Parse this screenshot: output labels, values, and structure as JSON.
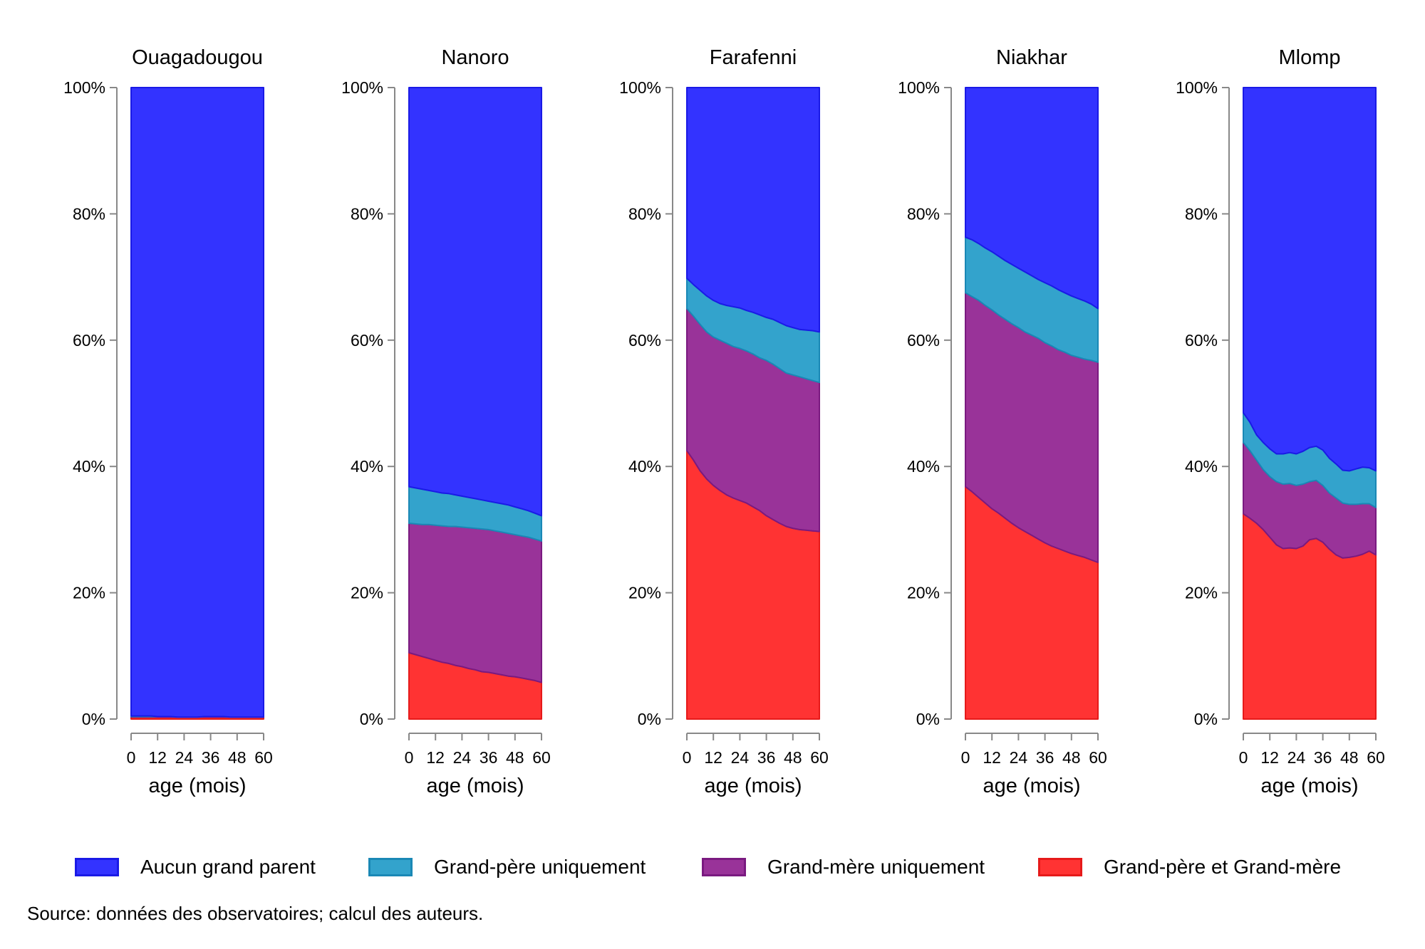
{
  "chart_data": {
    "type": "area",
    "stacked": true,
    "normalized": true,
    "xlabel": "age (mois)",
    "xticks": [
      0,
      12,
      24,
      36,
      48,
      60
    ],
    "xlim": [
      0,
      60
    ],
    "ylim": [
      0,
      100
    ],
    "yticks": [
      "0%",
      "20%",
      "40%",
      "60%",
      "80%",
      "100%"
    ],
    "ytick_values": [
      0,
      20,
      40,
      60,
      80,
      100
    ],
    "series_meta": [
      {
        "name": "Aucun grand parent",
        "fill": "#3333ff",
        "stroke": "#1a1ae6"
      },
      {
        "name": "Grand-père uniquement",
        "fill": "#33a3cc",
        "stroke": "#1a88b5"
      },
      {
        "name": "Grand-mère uniquement",
        "fill": "#993399",
        "stroke": "#7a1a80"
      },
      {
        "name": "Grand-père et Grand-mère",
        "fill": "#ff3333",
        "stroke": "#e61a1a"
      }
    ],
    "x": [
      0,
      3,
      6,
      9,
      12,
      15,
      18,
      21,
      24,
      27,
      30,
      33,
      36,
      39,
      42,
      45,
      48,
      51,
      54,
      57,
      60
    ],
    "panels": [
      {
        "title": "Ouagadougou",
        "boundaries": {
          "red_top": [
            0.3,
            0.3,
            0.3,
            0.3,
            0.3,
            0.3,
            0.3,
            0.3,
            0.3,
            0.3,
            0.3,
            0.3,
            0.3,
            0.3,
            0.3,
            0.3,
            0.3,
            0.3,
            0.3,
            0.3,
            0.3
          ],
          "purple_top": [
            0.4,
            0.4,
            0.4,
            0.4,
            0.4,
            0.4,
            0.4,
            0.4,
            0.4,
            0.4,
            0.4,
            0.4,
            0.4,
            0.4,
            0.4,
            0.4,
            0.4,
            0.4,
            0.4,
            0.4,
            0.4
          ],
          "teal_top": [
            0.5,
            0.5,
            0.5,
            0.5,
            0.4,
            0.4,
            0.4,
            0.3,
            0.3,
            0.3,
            0.3,
            0.4,
            0.4,
            0.4,
            0.4,
            0.3,
            0.3,
            0.3,
            0.3,
            0.3,
            0.3
          ]
        }
      },
      {
        "title": "Nanoro",
        "boundaries": {
          "red_top": [
            10.5,
            10.2,
            9.9,
            9.6,
            9.3,
            9.0,
            8.8,
            8.5,
            8.3,
            8.0,
            7.8,
            7.5,
            7.4,
            7.2,
            7.0,
            6.8,
            6.7,
            6.5,
            6.3,
            6.1,
            5.8
          ],
          "purple_top": [
            31.0,
            30.9,
            30.8,
            30.8,
            30.7,
            30.6,
            30.5,
            30.5,
            30.4,
            30.3,
            30.2,
            30.1,
            30.0,
            29.8,
            29.6,
            29.4,
            29.2,
            29.0,
            28.8,
            28.5,
            28.2
          ],
          "teal_top": [
            36.8,
            36.6,
            36.4,
            36.2,
            36.0,
            35.8,
            35.7,
            35.5,
            35.3,
            35.1,
            34.9,
            34.7,
            34.5,
            34.3,
            34.1,
            33.9,
            33.6,
            33.3,
            33.0,
            32.6,
            32.2
          ]
        }
      },
      {
        "title": "Farafenni",
        "boundaries": {
          "red_top": [
            42.5,
            41.0,
            39.3,
            38.0,
            37.0,
            36.2,
            35.5,
            35.0,
            34.6,
            34.2,
            33.6,
            33.0,
            32.2,
            31.6,
            31.0,
            30.5,
            30.2,
            30.0,
            29.9,
            29.8,
            29.7
          ],
          "purple_top": [
            65.0,
            63.8,
            62.5,
            61.3,
            60.5,
            60.0,
            59.5,
            59.0,
            58.7,
            58.3,
            57.8,
            57.2,
            56.8,
            56.2,
            55.5,
            54.8,
            54.5,
            54.2,
            53.9,
            53.6,
            53.3
          ],
          "teal_top": [
            69.8,
            68.8,
            67.9,
            67.0,
            66.3,
            65.8,
            65.5,
            65.3,
            65.1,
            64.7,
            64.4,
            64.0,
            63.6,
            63.3,
            62.8,
            62.3,
            62.0,
            61.7,
            61.6,
            61.5,
            61.3
          ]
        }
      },
      {
        "title": "Niakhar",
        "boundaries": {
          "red_top": [
            36.8,
            36.0,
            35.1,
            34.2,
            33.3,
            32.6,
            31.8,
            31.0,
            30.3,
            29.7,
            29.1,
            28.5,
            27.9,
            27.4,
            27.0,
            26.6,
            26.2,
            25.9,
            25.6,
            25.2,
            24.8
          ],
          "purple_top": [
            67.5,
            66.9,
            66.3,
            65.5,
            64.8,
            64.0,
            63.3,
            62.6,
            62.0,
            61.3,
            60.8,
            60.3,
            59.6,
            59.1,
            58.5,
            58.1,
            57.6,
            57.3,
            57.0,
            56.8,
            56.5
          ],
          "teal_top": [
            76.3,
            75.9,
            75.3,
            74.6,
            74.0,
            73.3,
            72.6,
            72.0,
            71.4,
            70.8,
            70.2,
            69.6,
            69.1,
            68.6,
            68.0,
            67.5,
            67.0,
            66.6,
            66.2,
            65.7,
            65.0
          ]
        }
      },
      {
        "title": "Mlomp",
        "boundaries": {
          "red_top": [
            32.5,
            31.8,
            31.0,
            30.0,
            28.8,
            27.6,
            27.0,
            27.1,
            27.0,
            27.4,
            28.4,
            28.6,
            28.0,
            26.9,
            26.0,
            25.5,
            25.6,
            25.8,
            26.1,
            26.6,
            26.0
          ],
          "purple_top": [
            43.8,
            42.5,
            41.0,
            39.5,
            38.4,
            37.6,
            37.2,
            37.3,
            37.0,
            37.2,
            37.6,
            37.8,
            37.0,
            35.8,
            35.0,
            34.2,
            34.0,
            34.0,
            34.1,
            34.1,
            33.5
          ],
          "teal_top": [
            48.5,
            47.0,
            45.0,
            43.8,
            42.8,
            42.0,
            42.0,
            42.2,
            42.0,
            42.4,
            43.0,
            43.2,
            42.6,
            41.3,
            40.4,
            39.4,
            39.3,
            39.6,
            39.9,
            39.8,
            39.3
          ]
        }
      }
    ]
  },
  "legend": {
    "items": [
      {
        "label": "Aucun grand parent",
        "fill": "#3333ff",
        "border": "#1a1ae6"
      },
      {
        "label": "Grand-père uniquement",
        "fill": "#33a3cc",
        "border": "#1a88b5"
      },
      {
        "label": "Grand-mère uniquement",
        "fill": "#993399",
        "border": "#7a1a80"
      },
      {
        "label": "Grand-père et Grand-mère",
        "fill": "#ff3333",
        "border": "#e61a1a"
      }
    ]
  },
  "source_note": "Source: données des observatoires; calcul des auteurs."
}
